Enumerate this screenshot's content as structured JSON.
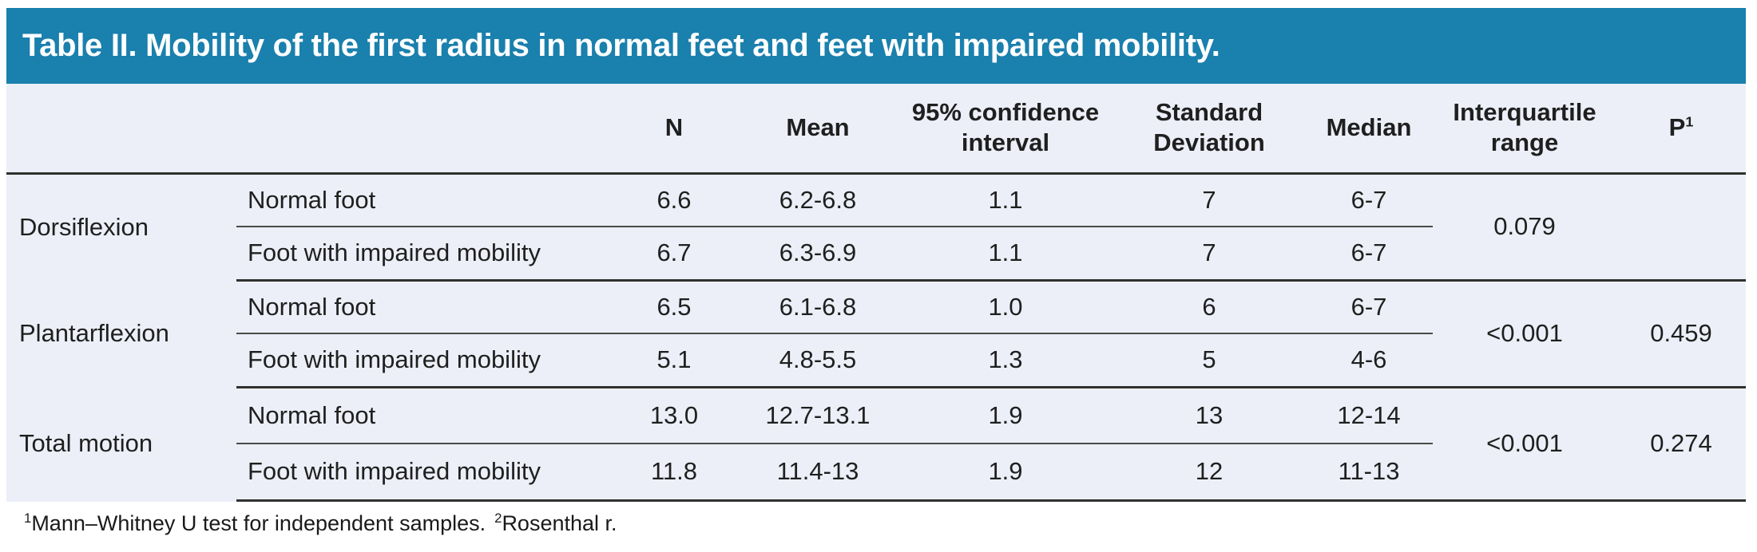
{
  "title": "Table II. Mobility of the first radius in normal feet and feet with impaired mobility.",
  "columns": {
    "n": "N",
    "mean": "Mean",
    "ci": "95% confidence interval",
    "sd": "Standard Deviation",
    "median": "Median",
    "iqr": "Interquartile range",
    "p": "P",
    "p_sup": "1"
  },
  "groups": [
    {
      "label": "Dorsiflexion",
      "rows": [
        {
          "condition": "Normal foot",
          "n": "6.6",
          "mean": "6.2-6.8",
          "ci": "1.1",
          "sd": "7",
          "median": "6-7"
        },
        {
          "condition": "Foot with impaired mobility",
          "n": "6.7",
          "mean": "6.3-6.9",
          "ci": "1.1",
          "sd": "7",
          "median": "6-7"
        }
      ],
      "iqr": "0.079",
      "p": ""
    },
    {
      "label": "Plantarflexion",
      "rows": [
        {
          "condition": "Normal foot",
          "n": "6.5",
          "mean": "6.1-6.8",
          "ci": "1.0",
          "sd": "6",
          "median": "6-7"
        },
        {
          "condition": "Foot with impaired mobility",
          "n": "5.1",
          "mean": "4.8-5.5",
          "ci": "1.3",
          "sd": "5",
          "median": "4-6"
        }
      ],
      "iqr": "<0.001",
      "p": "0.459"
    },
    {
      "label": "Total motion",
      "rows": [
        {
          "condition": "Normal foot",
          "n": "13.0",
          "mean": "12.7-13.1",
          "ci": "1.9",
          "sd": "13",
          "median": "12-14"
        },
        {
          "condition": "Foot with impaired mobility",
          "n": "11.8",
          "mean": "11.4-13",
          "ci": "1.9",
          "sd": "12",
          "median": "11-13"
        }
      ],
      "iqr": "<0.001",
      "p": "0.274"
    }
  ],
  "footnote": {
    "sup1": "1",
    "text1": "Mann–Whitney U test for independent samples.",
    "sup2": "2",
    "text2": "Rosenthal r."
  },
  "colors": {
    "header_bg": "#1a80ad",
    "body_bg": "#eceff7",
    "rule_heavy": "#303030",
    "rule_light": "#4a4a4a",
    "title_text": "#ffffff"
  }
}
